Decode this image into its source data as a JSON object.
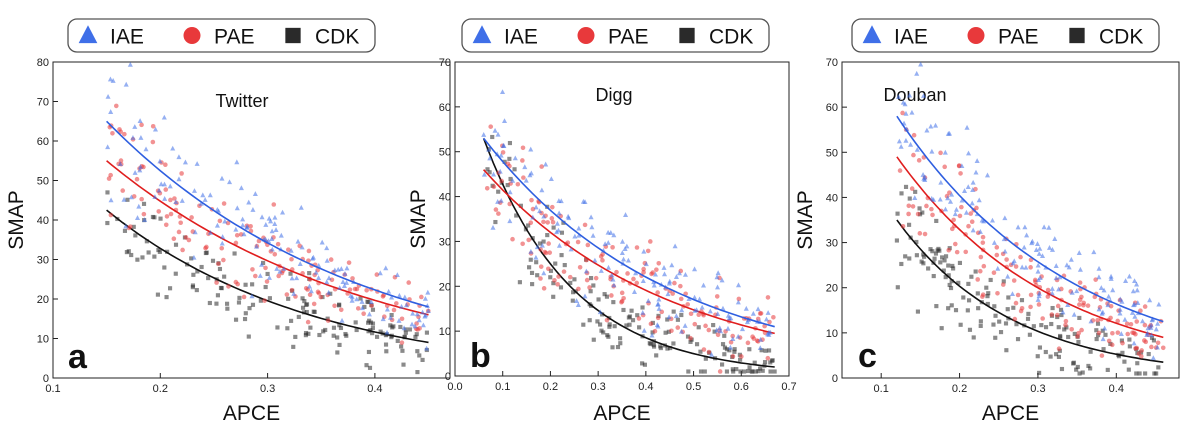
{
  "legend": {
    "items": [
      "IAE",
      "PAE",
      "CDK"
    ]
  },
  "chart_data": [
    {
      "type": "scatter",
      "panel_label": "a",
      "title": "Twitter",
      "xlabel": "APCE",
      "ylabel": "SMAP",
      "xlim": [
        0.1,
        0.47
      ],
      "ylim": [
        0,
        80
      ],
      "xticks": [
        0.1,
        0.2,
        0.3,
        0.4
      ],
      "yticks": [
        0,
        10,
        20,
        30,
        40,
        50,
        60,
        70,
        80
      ],
      "x_range": [
        0.15,
        0.45
      ],
      "series": [
        {
          "name": "IAE",
          "color": "#3f6fe8",
          "marker": "triangle",
          "fit_endpoints": [
            65,
            18
          ],
          "mean_abs_dev": 6.5
        },
        {
          "name": "PAE",
          "color": "#e8393b",
          "marker": "circle",
          "fit_endpoints": [
            55,
            16
          ],
          "mean_abs_dev": 6
        },
        {
          "name": "CDK",
          "color": "#2a2a2a",
          "marker": "square",
          "fit_endpoints": [
            42.5,
            9
          ],
          "mean_abs_dev": 5
        }
      ]
    },
    {
      "type": "scatter",
      "panel_label": "b",
      "title": "Digg",
      "xlabel": "APCE",
      "ylabel": "SMAP",
      "xlim": [
        0.0,
        0.7
      ],
      "ylim": [
        0,
        70
      ],
      "xticks": [
        0.0,
        0.1,
        0.2,
        0.3,
        0.4,
        0.5,
        0.6,
        0.7
      ],
      "yticks": [
        0,
        10,
        20,
        30,
        40,
        50,
        60,
        70
      ],
      "x_range": [
        0.06,
        0.67
      ],
      "series": [
        {
          "name": "IAE",
          "color": "#3f6fe8",
          "marker": "triangle",
          "fit_endpoints": [
            53,
            11
          ],
          "mean_abs_dev": 6
        },
        {
          "name": "PAE",
          "color": "#e8393b",
          "marker": "circle",
          "fit_endpoints": [
            46,
            9.5
          ],
          "mean_abs_dev": 5.5
        },
        {
          "name": "CDK",
          "color": "#2a2a2a",
          "marker": "square",
          "fit_endpoints": [
            53,
            2
          ],
          "mean_abs_dev": 4.5
        }
      ]
    },
    {
      "type": "scatter",
      "panel_label": "c",
      "title": "Douban",
      "xlabel": "APCE",
      "ylabel": "SMAP",
      "xlim": [
        0.05,
        0.48
      ],
      "ylim": [
        0,
        70
      ],
      "xticks": [
        0.1,
        0.2,
        0.3,
        0.4
      ],
      "yticks": [
        0,
        10,
        20,
        30,
        40,
        50,
        60,
        70
      ],
      "x_range": [
        0.12,
        0.46
      ],
      "series": [
        {
          "name": "IAE",
          "color": "#3f6fe8",
          "marker": "triangle",
          "fit_endpoints": [
            58,
            12.5
          ],
          "mean_abs_dev": 5.5
        },
        {
          "name": "PAE",
          "color": "#e8393b",
          "marker": "circle",
          "fit_endpoints": [
            49,
            9
          ],
          "mean_abs_dev": 5
        },
        {
          "name": "CDK",
          "color": "#2a2a2a",
          "marker": "square",
          "fit_endpoints": [
            35,
            3.5
          ],
          "mean_abs_dev": 4.5
        }
      ]
    }
  ]
}
